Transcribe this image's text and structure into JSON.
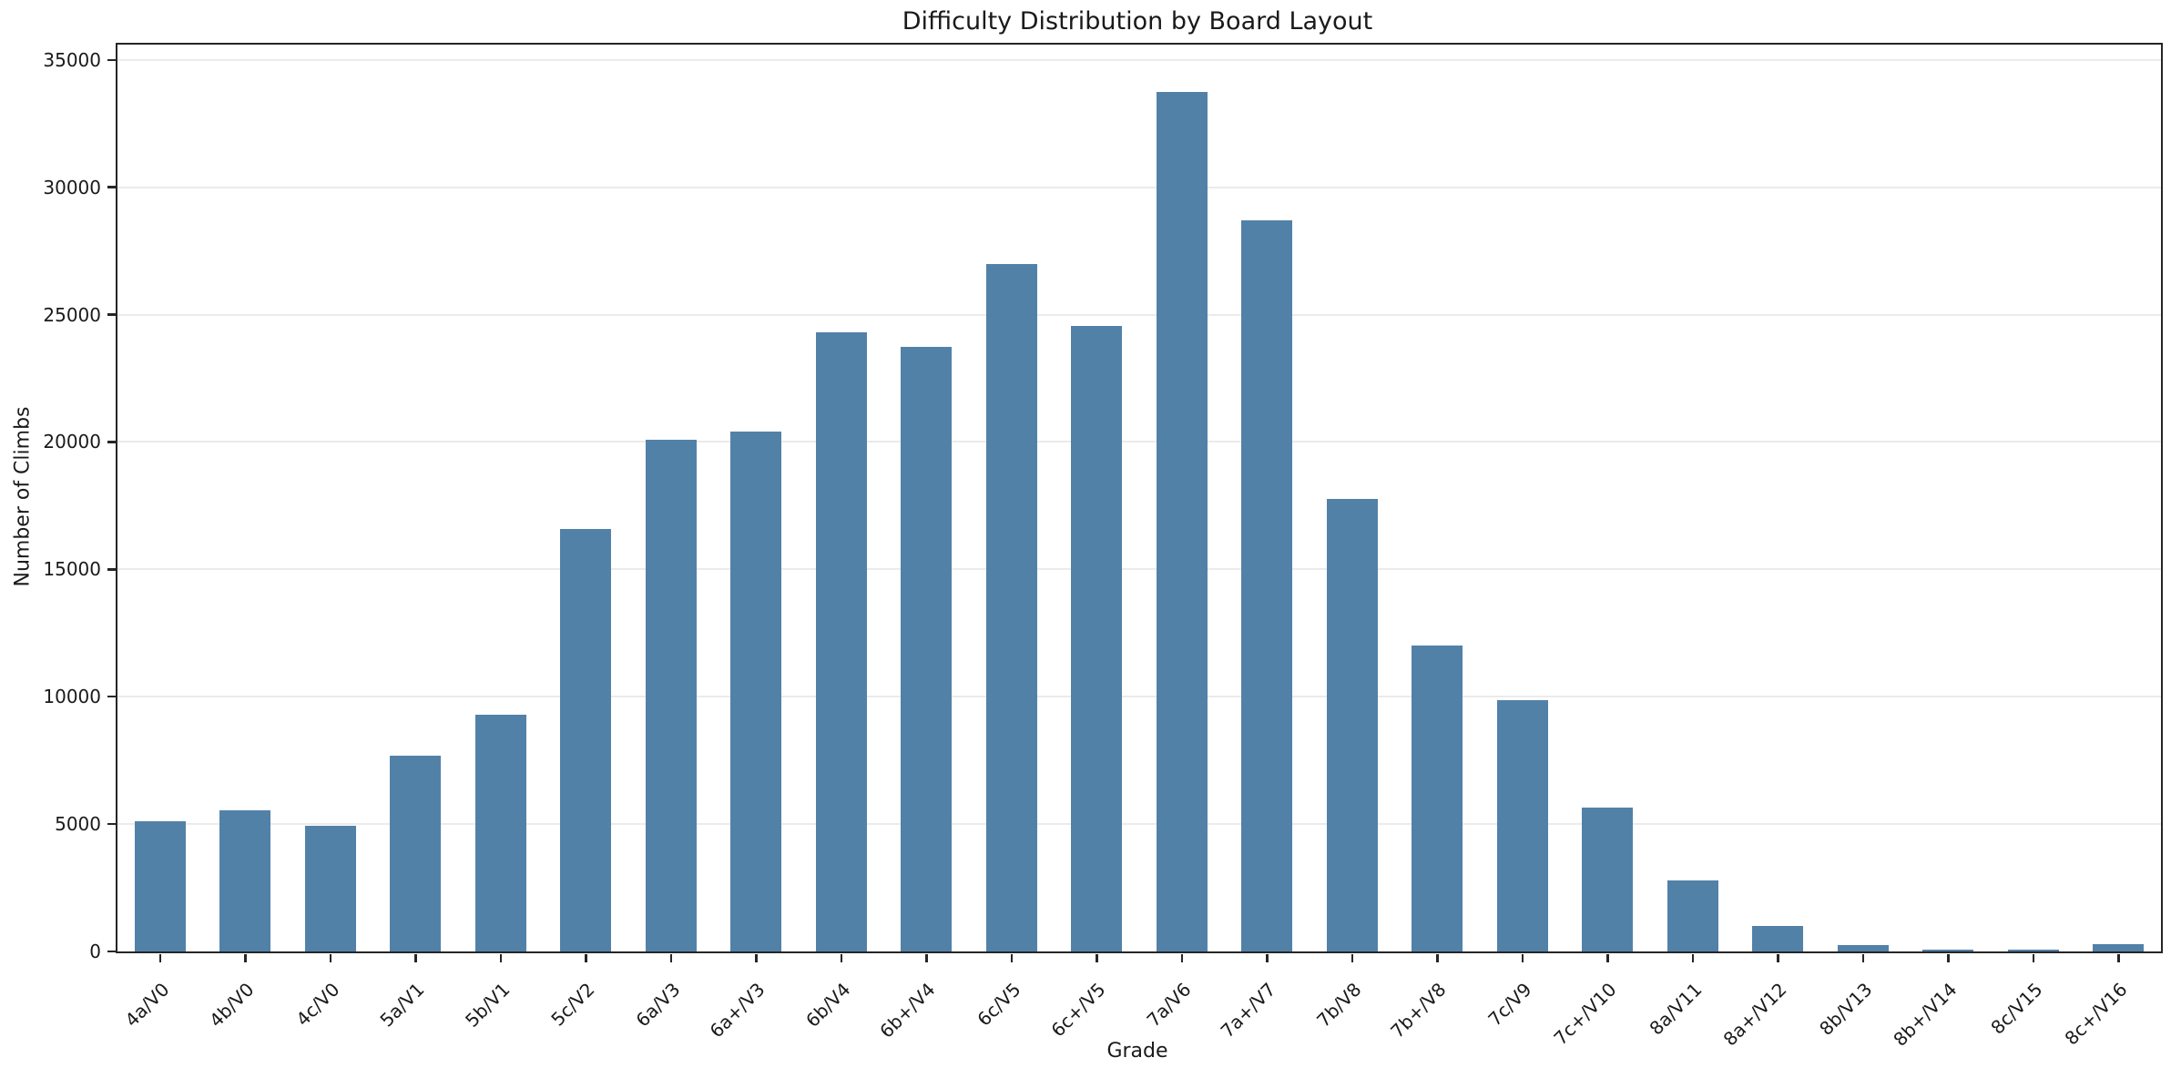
{
  "chart_data": {
    "type": "bar",
    "title": "Difficulty Distribution by Board Layout",
    "xlabel": "Grade",
    "ylabel": "Number of Climbs",
    "categories": [
      "4a/V0",
      "4b/V0",
      "4c/V0",
      "5a/V1",
      "5b/V1",
      "5c/V2",
      "6a/V3",
      "6a+/V3",
      "6b/V4",
      "6b+/V4",
      "6c/V5",
      "6c+/V5",
      "7a/V6",
      "7a+/V7",
      "7b/V8",
      "7b+/V8",
      "7c/V9",
      "7c+/V10",
      "8a/V11",
      "8a+/V12",
      "8b/V13",
      "8b+/V14",
      "8c/V15",
      "8c+/V16"
    ],
    "values": [
      5100,
      5550,
      4950,
      7700,
      9300,
      16600,
      20100,
      20400,
      24300,
      23750,
      27000,
      24550,
      33750,
      28700,
      17750,
      12000,
      9850,
      5650,
      2800,
      1000,
      250,
      70,
      70,
      280
    ],
    "yticks": [
      0,
      5000,
      10000,
      15000,
      20000,
      25000,
      30000,
      35000
    ],
    "ylim": [
      0,
      35600
    ],
    "grid": "horizontal",
    "legend": "none",
    "bar_width_fraction": 0.6,
    "x_tick_rotation_deg": 45,
    "bar_color": "#5281A8",
    "grid_color": "#ebebeb",
    "spine_color": "#262626",
    "text_color": "#1a1a1a",
    "background_color": "#ffffff"
  }
}
